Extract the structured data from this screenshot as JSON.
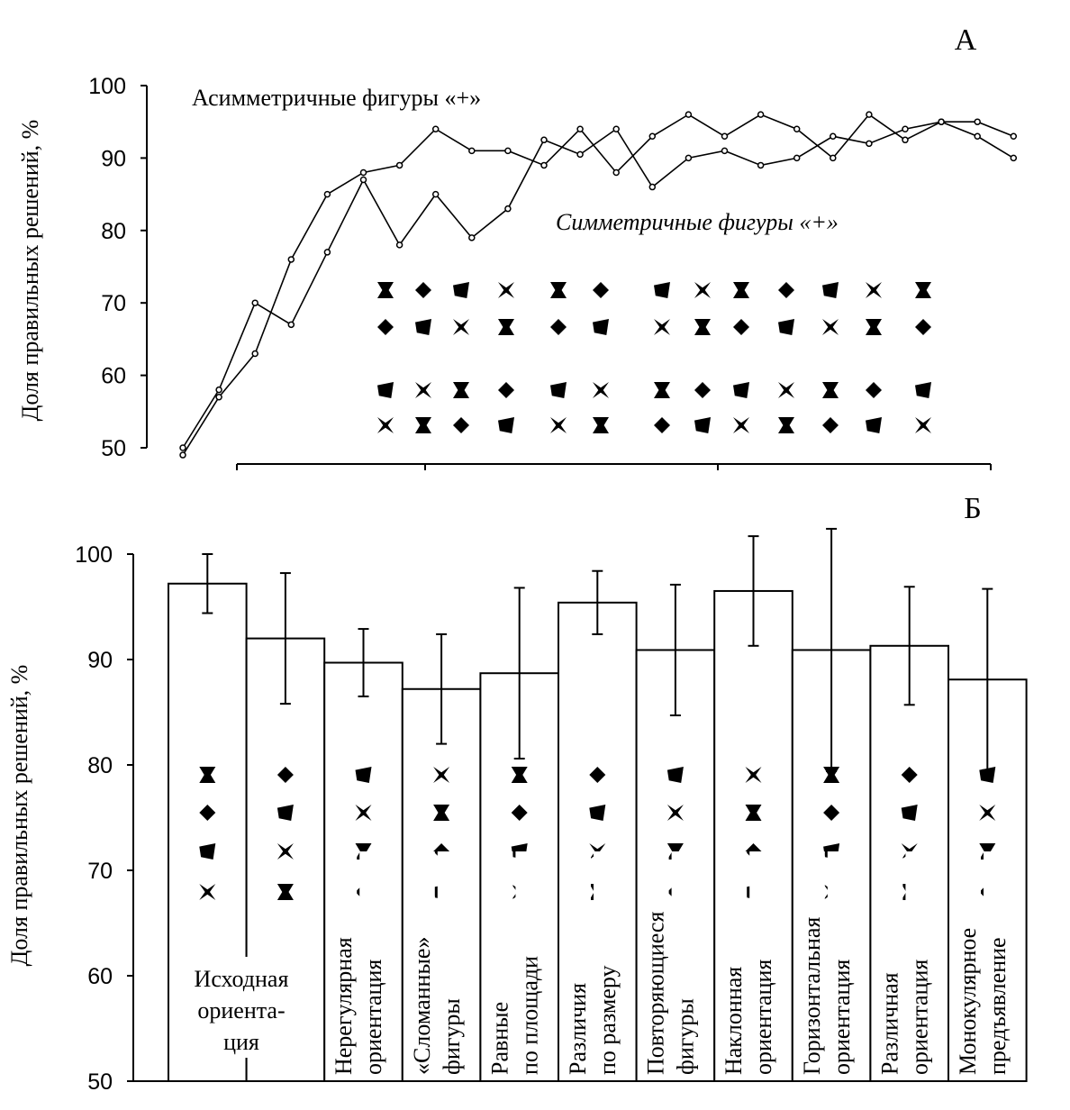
{
  "chart_data": [
    {
      "type": "line",
      "panel": "А",
      "y_label": "Доля правильных решений, %",
      "categories": [
        null,
        null,
        null,
        null,
        null,
        null,
        null,
        null,
        null,
        null,
        null,
        null,
        null,
        null,
        null,
        null,
        null,
        null,
        null,
        null,
        null,
        null,
        null,
        null
      ],
      "series": [
        {
          "name": "Асимметричные фигуры «+»",
          "color": "#000000",
          "values": [
            49,
            57,
            63,
            76,
            85,
            88,
            89,
            94,
            91,
            91,
            89,
            94,
            88,
            93,
            96,
            93,
            96,
            94,
            90,
            96,
            92.5,
            95,
            95,
            93
          ]
        },
        {
          "name": "Симметричные фигуры «+»",
          "color": "#000000",
          "values": [
            50,
            58,
            70,
            67,
            77,
            87,
            78,
            85,
            79,
            83,
            92.5,
            90.5,
            94,
            86,
            90,
            91,
            89,
            90,
            93,
            92,
            94,
            95,
            93,
            90
          ]
        }
      ],
      "ylim": [
        50,
        100
      ],
      "yticks": [
        50,
        60,
        70,
        80,
        90,
        100
      ]
    },
    {
      "type": "bar",
      "panel": "Б",
      "y_label": "Доля правильных решений, %",
      "categories": [
        [
          "Исходная",
          "ориента-",
          "ция"
        ],
        null,
        [
          "Нерегулярная",
          "ориентация"
        ],
        [
          "«Сломанные»",
          "фигуры"
        ],
        [
          "Равные",
          "по площади"
        ],
        [
          "Различия",
          "по размеру"
        ],
        [
          "Повторяющиеся",
          "фигуры"
        ],
        [
          "Наклонная",
          "ориентация"
        ],
        [
          "Горизонтальная",
          "ориентация"
        ],
        [
          "Различная",
          "ориентация"
        ],
        [
          "Монокулярное",
          "предъявление"
        ]
      ],
      "values": [
        97.2,
        92.0,
        89.7,
        87.2,
        88.7,
        95.4,
        90.9,
        96.5,
        90.9,
        91.3,
        88.1
      ],
      "errors": [
        2.8,
        6.2,
        3.2,
        5.2,
        8.1,
        3.0,
        6.2,
        5.2,
        11.5,
        5.6,
        8.6
      ],
      "color": "#ffffff",
      "ylim": [
        50,
        100
      ],
      "yticks": [
        50,
        60,
        70,
        80,
        90,
        100
      ]
    }
  ]
}
